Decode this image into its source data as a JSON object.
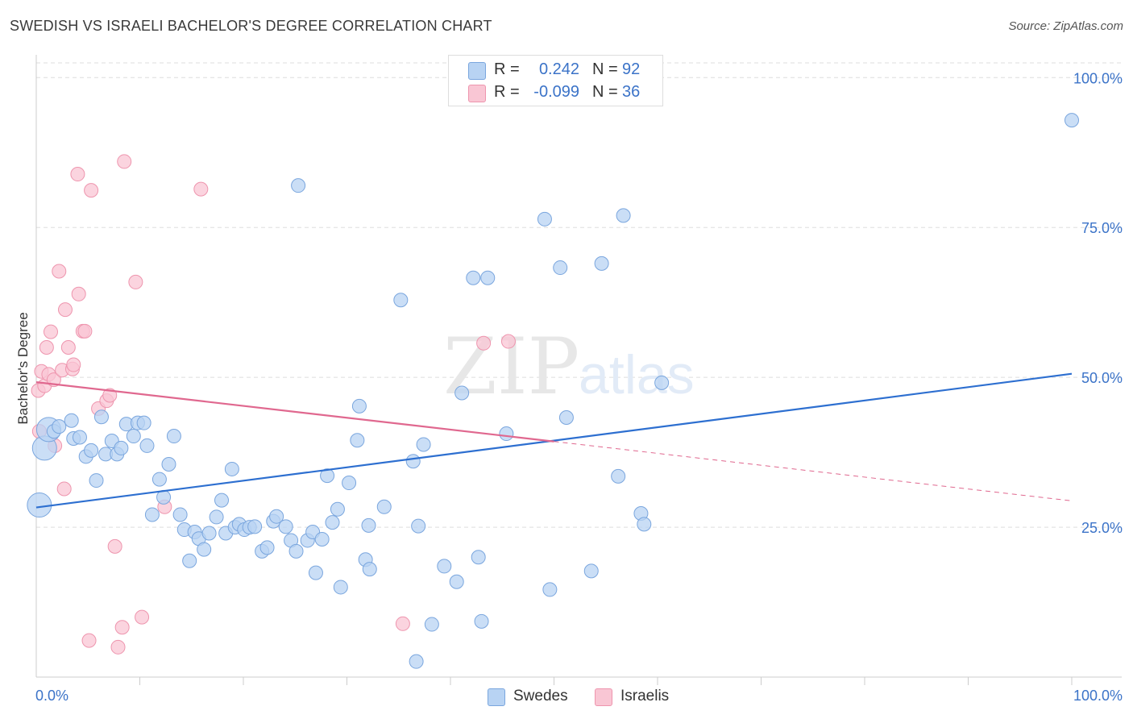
{
  "title": "SWEDISH VS ISRAELI BACHELOR'S DEGREE CORRELATION CHART",
  "source": "Source: ZipAtlas.com",
  "watermark": {
    "zip": "ZIP",
    "atlas": "atlas"
  },
  "legend": {
    "rows": [
      {
        "r_label": "R =",
        "r_value": "0.242",
        "n_label": "N =",
        "n_value": "92"
      },
      {
        "r_label": "R =",
        "r_value": "-0.099",
        "n_label": "N =",
        "n_value": "36"
      }
    ]
  },
  "bottom_legend": {
    "swedes": "Swedes",
    "israelis": "Israelis"
  },
  "colors": {
    "swedes_fill": "#b8d3f3",
    "swedes_stroke": "#7aa6de",
    "swedes_line": "#2d6fd0",
    "israelis_fill": "#f9c6d4",
    "israelis_stroke": "#ee95ae",
    "israelis_line": "#e0688f",
    "axis_text": "#3b73c8",
    "grid": "#dddddd"
  },
  "chart_data": {
    "type": "scatter",
    "title": "SWEDISH VS ISRAELI BACHELOR'S DEGREE CORRELATION CHART",
    "xlabel": "",
    "ylabel": "Bachelor's Degree",
    "xlim": [
      0,
      100
    ],
    "ylim": [
      0,
      103
    ],
    "x_tick_labels": [
      "0.0%",
      "100.0%"
    ],
    "y_ticks": [
      25,
      50,
      75,
      100
    ],
    "y_tick_labels": [
      "25.0%",
      "50.0%",
      "75.0%",
      "100.0%"
    ],
    "grid": true,
    "series": [
      {
        "name": "Swedes",
        "r": 0.242,
        "n": 92,
        "trend": {
          "x": [
            0,
            100
          ],
          "y": [
            28.3,
            50.6
          ]
        },
        "points": [
          [
            0.3,
            28.7,
            2
          ],
          [
            0.8,
            38.2,
            2
          ],
          [
            1.2,
            41.3,
            2
          ],
          [
            1.7,
            41.0,
            1
          ],
          [
            2.2,
            41.8,
            1
          ],
          [
            3.4,
            42.8,
            1
          ],
          [
            3.6,
            39.8,
            1
          ],
          [
            4.2,
            40.0,
            1
          ],
          [
            4.8,
            36.8,
            1
          ],
          [
            5.3,
            37.8,
            1
          ],
          [
            5.8,
            32.8,
            1
          ],
          [
            6.3,
            43.4,
            1
          ],
          [
            6.7,
            37.2,
            1
          ],
          [
            7.3,
            39.4,
            1
          ],
          [
            7.8,
            37.2,
            1
          ],
          [
            8.2,
            38.2,
            1
          ],
          [
            8.7,
            42.2,
            1
          ],
          [
            9.4,
            40.2,
            1
          ],
          [
            9.8,
            42.4,
            1
          ],
          [
            10.4,
            42.4,
            1
          ],
          [
            10.7,
            38.6,
            1
          ],
          [
            11.2,
            27.1,
            1
          ],
          [
            11.9,
            33.0,
            1
          ],
          [
            12.3,
            30.0,
            1
          ],
          [
            12.8,
            35.5,
            1
          ],
          [
            13.3,
            40.2,
            1
          ],
          [
            13.9,
            27.1,
            1
          ],
          [
            14.3,
            24.6,
            1
          ],
          [
            14.8,
            19.4,
            1
          ],
          [
            15.3,
            24.2,
            1
          ],
          [
            15.7,
            23.1,
            1
          ],
          [
            16.2,
            21.3,
            1
          ],
          [
            16.7,
            24.0,
            1
          ],
          [
            17.4,
            26.7,
            1
          ],
          [
            17.9,
            29.5,
            1
          ],
          [
            18.3,
            24.0,
            1
          ],
          [
            18.9,
            34.7,
            1
          ],
          [
            19.2,
            25.0,
            1
          ],
          [
            19.6,
            25.5,
            1
          ],
          [
            20.1,
            24.6,
            1
          ],
          [
            20.6,
            25.0,
            1
          ],
          [
            21.1,
            25.1,
            1
          ],
          [
            21.8,
            21.0,
            1
          ],
          [
            22.3,
            21.6,
            1
          ],
          [
            22.9,
            26.0,
            1
          ],
          [
            23.2,
            26.8,
            1
          ],
          [
            24.1,
            25.1,
            1
          ],
          [
            24.6,
            22.8,
            1
          ],
          [
            25.1,
            21.0,
            1
          ],
          [
            25.3,
            82.0,
            1
          ],
          [
            26.2,
            22.8,
            1
          ],
          [
            26.7,
            24.2,
            1
          ],
          [
            27.0,
            17.4,
            1
          ],
          [
            27.6,
            23.0,
            1
          ],
          [
            28.1,
            33.6,
            1
          ],
          [
            28.6,
            25.8,
            1
          ],
          [
            29.1,
            28.0,
            1
          ],
          [
            29.4,
            15.0,
            1
          ],
          [
            30.2,
            32.4,
            1
          ],
          [
            31.0,
            39.5,
            1
          ],
          [
            31.2,
            45.2,
            1
          ],
          [
            31.8,
            19.6,
            1
          ],
          [
            32.2,
            18.0,
            1
          ],
          [
            32.1,
            25.3,
            1
          ],
          [
            33.6,
            28.4,
            1
          ],
          [
            35.2,
            62.9,
            1
          ],
          [
            36.4,
            36.0,
            1
          ],
          [
            36.7,
            2.6,
            1
          ],
          [
            36.9,
            25.2,
            1
          ],
          [
            37.4,
            38.8,
            1
          ],
          [
            38.2,
            8.8,
            1
          ],
          [
            39.4,
            18.5,
            1
          ],
          [
            40.6,
            15.9,
            1
          ],
          [
            41.1,
            47.4,
            1
          ],
          [
            42.2,
            66.6,
            1
          ],
          [
            42.7,
            20.0,
            1
          ],
          [
            43.0,
            9.3,
            1
          ],
          [
            43.6,
            66.6,
            1
          ],
          [
            45.4,
            40.6,
            1
          ],
          [
            49.1,
            76.4,
            1
          ],
          [
            49.6,
            14.6,
            1
          ],
          [
            50.6,
            68.3,
            1
          ],
          [
            51.2,
            43.3,
            1
          ],
          [
            53.6,
            17.7,
            1
          ],
          [
            54.6,
            69.0,
            1
          ],
          [
            56.2,
            33.5,
            1
          ],
          [
            56.7,
            77.0,
            1
          ],
          [
            58.4,
            27.3,
            1
          ],
          [
            58.7,
            25.5,
            1
          ],
          [
            60.4,
            49.1,
            1
          ],
          [
            100.0,
            92.9,
            1
          ]
        ]
      },
      {
        "name": "Israelis",
        "r": -0.099,
        "n": 36,
        "trend": {
          "x": [
            0,
            50
          ],
          "y": [
            49.2,
            39.3
          ]
        },
        "trend_dashed": {
          "x": [
            50,
            100
          ],
          "y": [
            39.3,
            29.4
          ]
        },
        "points": [
          [
            0.2,
            47.8,
            1
          ],
          [
            0.3,
            41.0,
            1
          ],
          [
            0.5,
            51.0,
            1
          ],
          [
            0.8,
            48.6,
            1
          ],
          [
            1.0,
            55.0,
            1
          ],
          [
            1.2,
            50.5,
            1
          ],
          [
            1.4,
            57.6,
            1
          ],
          [
            1.7,
            49.6,
            1
          ],
          [
            1.8,
            38.6,
            1
          ],
          [
            2.2,
            67.7,
            1
          ],
          [
            2.5,
            51.2,
            1
          ],
          [
            2.7,
            31.4,
            1
          ],
          [
            2.8,
            61.3,
            1
          ],
          [
            3.1,
            55.0,
            1
          ],
          [
            3.5,
            51.4,
            1
          ],
          [
            3.6,
            52.1,
            1
          ],
          [
            4.0,
            83.9,
            1
          ],
          [
            4.1,
            63.9,
            1
          ],
          [
            4.5,
            57.7,
            1
          ],
          [
            4.7,
            57.7,
            1
          ],
          [
            5.1,
            6.1,
            1
          ],
          [
            5.3,
            81.2,
            1
          ],
          [
            6.0,
            44.8,
            1
          ],
          [
            6.8,
            46.1,
            1
          ],
          [
            7.1,
            47.0,
            1
          ],
          [
            7.6,
            21.8,
            1
          ],
          [
            7.9,
            5.0,
            1
          ],
          [
            8.3,
            8.3,
            1
          ],
          [
            8.5,
            86.0,
            1
          ],
          [
            9.6,
            65.9,
            1
          ],
          [
            10.2,
            10.0,
            1
          ],
          [
            12.4,
            28.4,
            1
          ],
          [
            15.9,
            81.4,
            1
          ],
          [
            35.4,
            8.9,
            1
          ],
          [
            43.2,
            55.7,
            1
          ],
          [
            45.6,
            56.0,
            1
          ]
        ]
      }
    ]
  }
}
